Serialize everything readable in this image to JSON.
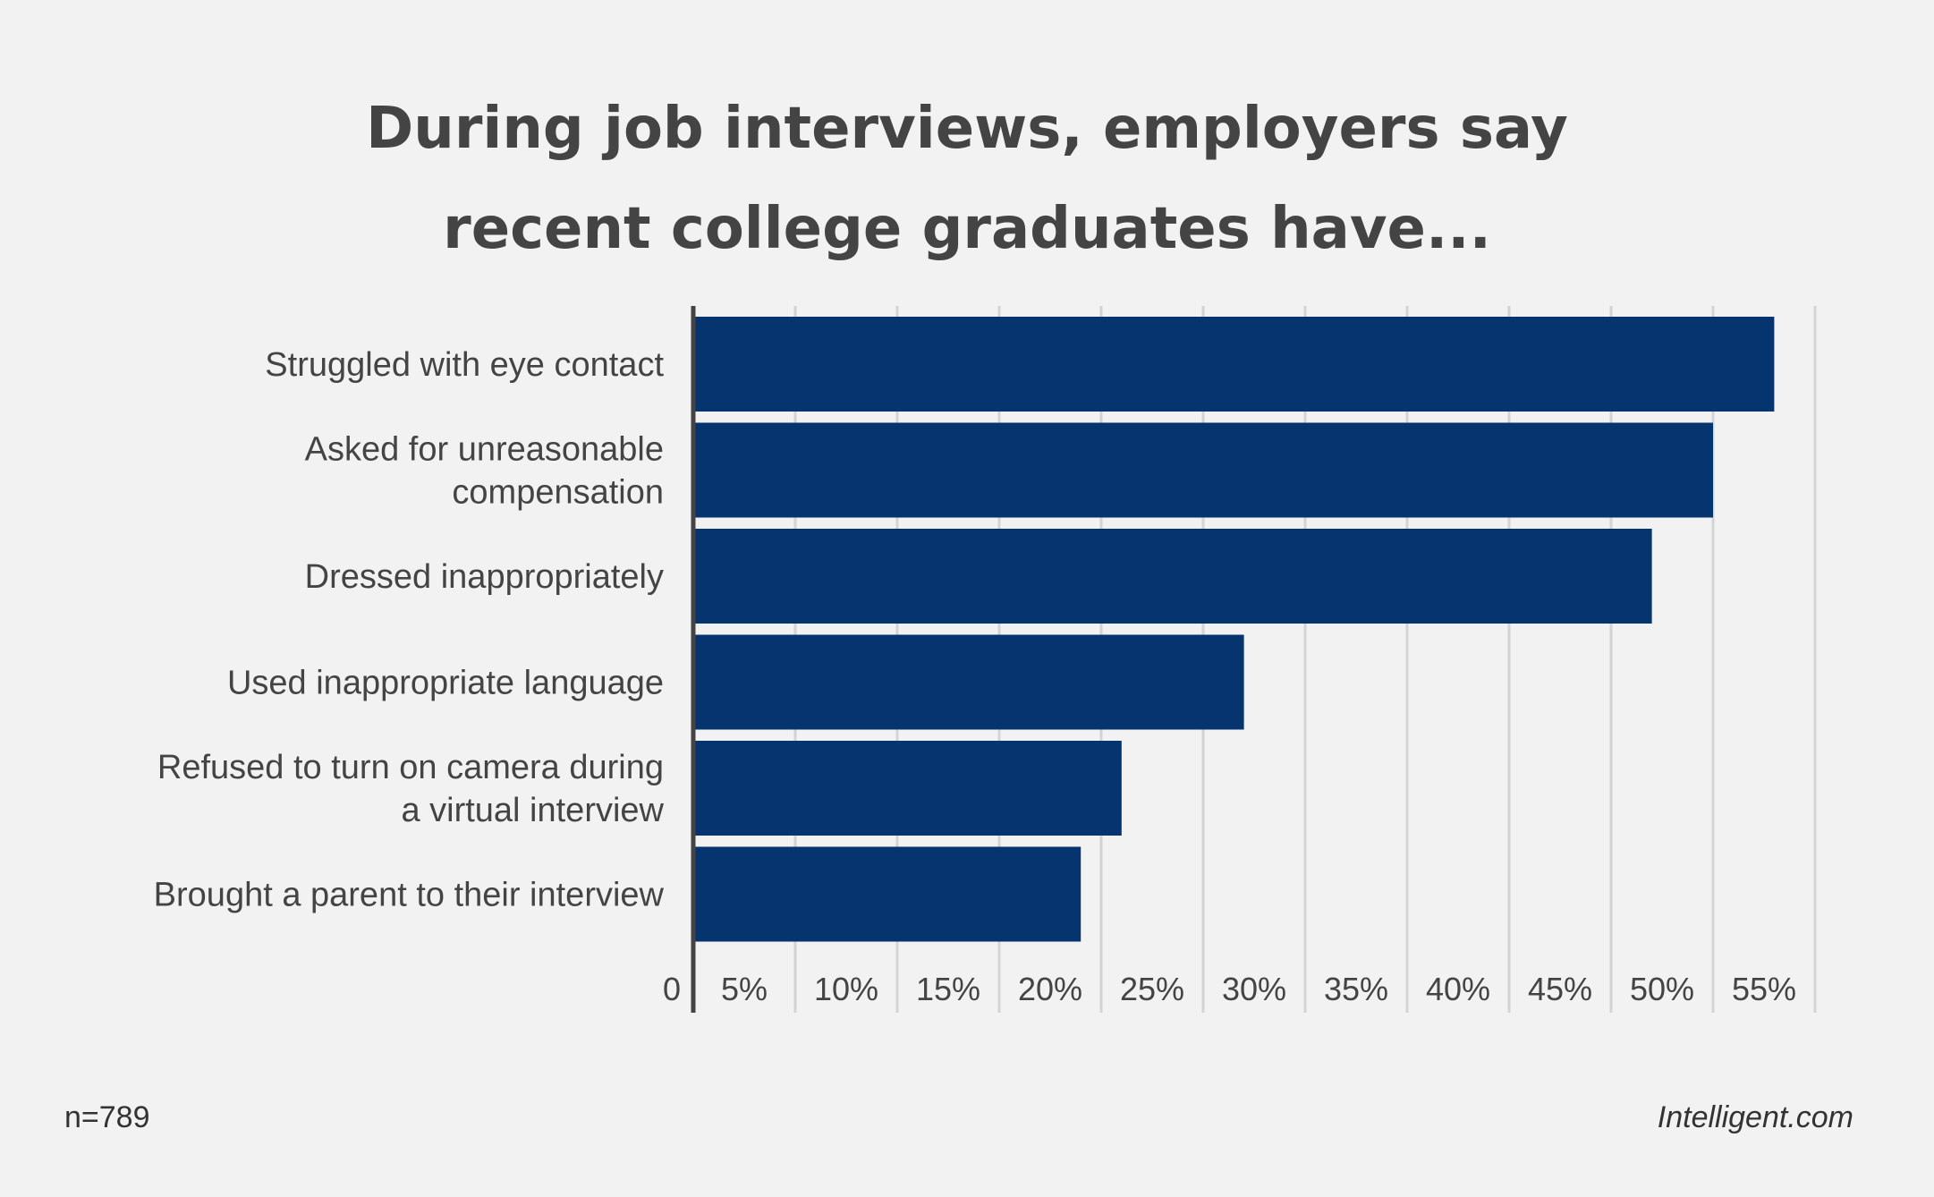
{
  "chart_data": {
    "type": "bar",
    "orientation": "horizontal",
    "title_lines": [
      "During job interviews, employers say",
      "recent college graduates have..."
    ],
    "categories": [
      [
        "Struggled with eye contact"
      ],
      [
        "Asked for unreasonable",
        "compensation"
      ],
      [
        "Dressed inappropriately"
      ],
      [
        "Used inappropriate language"
      ],
      [
        "Refused to turn on camera during",
        "a virtual interview"
      ],
      [
        "Brought a parent to their interview"
      ]
    ],
    "values": [
      53,
      50,
      47,
      27,
      21,
      19
    ],
    "tick_values": [
      0,
      5,
      10,
      15,
      20,
      25,
      30,
      35,
      40,
      45,
      50,
      55
    ],
    "tick_labels": [
      "0",
      "5%",
      "10%",
      "15%",
      "20%",
      "25%",
      "30%",
      "35%",
      "40%",
      "45%",
      "50%",
      "55%"
    ],
    "xlim": [
      0,
      55
    ],
    "grid": true,
    "bar_color": "#06346e",
    "grid_color": "#d4d4d4",
    "axis_color": "#444444"
  },
  "footer": {
    "sample_size": "n=789",
    "source": "Intelligent.com"
  }
}
